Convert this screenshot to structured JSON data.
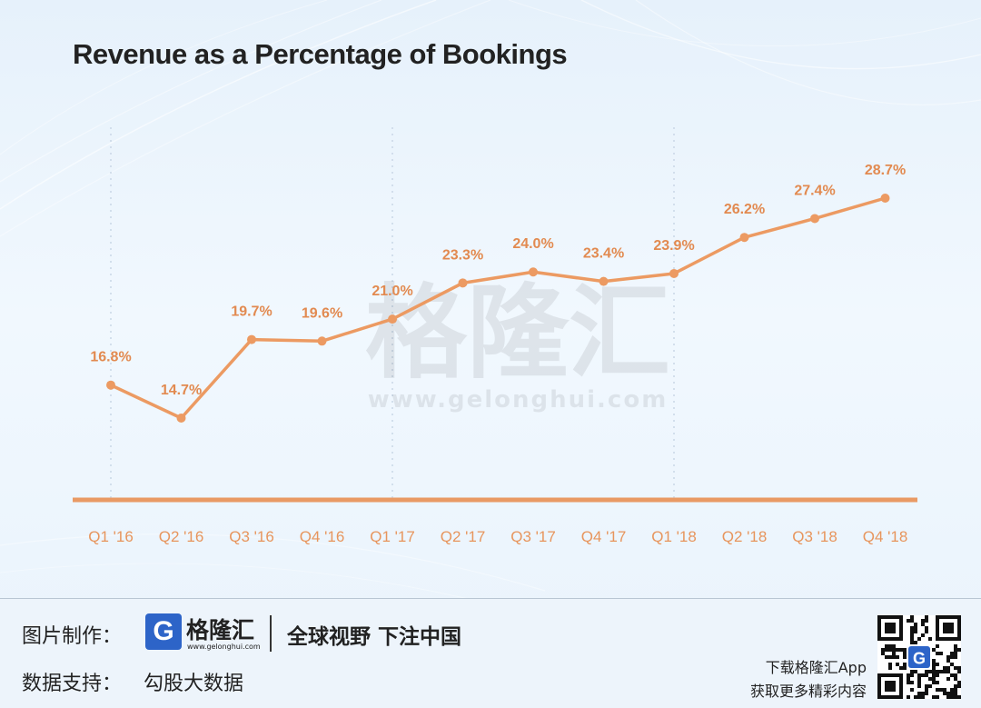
{
  "chart_data": {
    "type": "line",
    "title": "Revenue as a Percentage of Bookings",
    "xlabel": "",
    "ylabel": "",
    "categories": [
      "Q1 '16",
      "Q2 '16",
      "Q3 '16",
      "Q4 '16",
      "Q1 '17",
      "Q2 '17",
      "Q3 '17",
      "Q4 '17",
      "Q1 '18",
      "Q2 '18",
      "Q3 '18",
      "Q4 '18"
    ],
    "series": [
      {
        "name": "",
        "values": [
          16.8,
          14.7,
          19.7,
          19.6,
          21.0,
          23.3,
          24.0,
          23.4,
          23.9,
          26.2,
          27.4,
          28.7
        ],
        "labels": [
          "16.8%",
          "14.7%",
          "19.7%",
          "19.6%",
          "21.0%",
          "23.3%",
          "24.0%",
          "23.4%",
          "23.9%",
          "26.2%",
          "27.4%",
          "28.7%"
        ]
      }
    ],
    "ylim": [
      14.7,
      28.7
    ],
    "grid": false,
    "legend": "none",
    "colors": {
      "line": "#ec9a62",
      "label": "#e28a50",
      "axis": "#e99a64",
      "tick": "#e7955d"
    }
  },
  "watermark": {
    "name": "格隆汇",
    "url": "www.gelonghui.com"
  },
  "footer": {
    "credit_label": "图片制作：",
    "logo_mark": "G",
    "logo_name": "格隆汇",
    "logo_url": "www.gelonghui.com",
    "slogan": "全球视野 下注中国",
    "data_label": "数据支持：",
    "data_source": "勾股大数据",
    "download_line1": "下载格隆汇App",
    "download_line2": "获取更多精彩内容",
    "qr_icon": "qr-code-icon"
  }
}
